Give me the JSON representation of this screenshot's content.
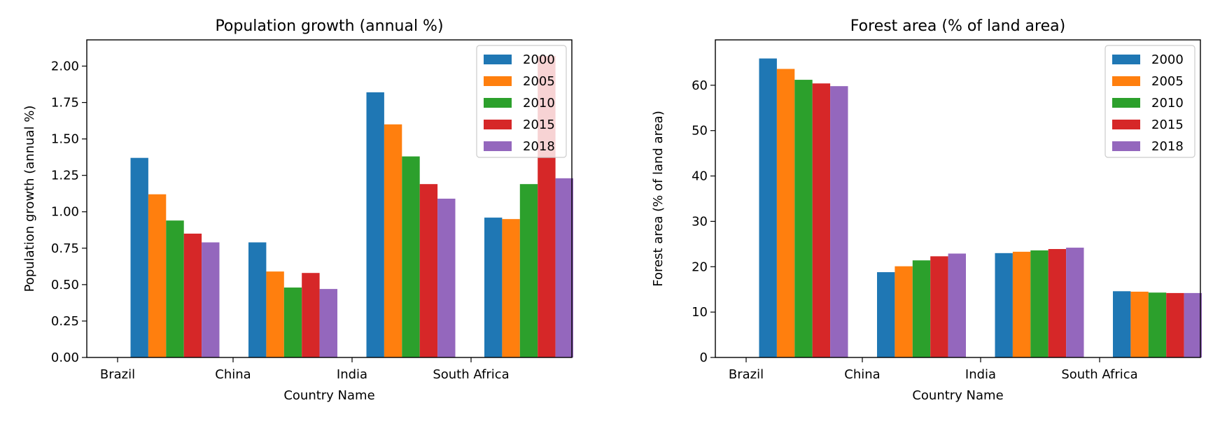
{
  "chart_data": [
    {
      "type": "bar",
      "title": "Population growth (annual %)",
      "xlabel": "Country Name",
      "ylabel": "Population growth (annual %)",
      "categories": [
        "Brazil",
        "China",
        "India",
        "South Africa"
      ],
      "ylim": [
        0,
        2.18
      ],
      "yticks": [
        "0.00",
        "0.25",
        "0.50",
        "0.75",
        "1.00",
        "1.25",
        "1.50",
        "1.75",
        "2.00"
      ],
      "grid": false,
      "legend_position": "top-right",
      "series": [
        {
          "name": "2000",
          "color": "#1f77b4",
          "values": [
            1.37,
            0.79,
            1.82,
            0.96
          ]
        },
        {
          "name": "2005",
          "color": "#ff7f0e",
          "values": [
            1.12,
            0.59,
            1.6,
            0.95
          ]
        },
        {
          "name": "2010",
          "color": "#2ca02c",
          "values": [
            0.94,
            0.48,
            1.38,
            1.19
          ]
        },
        {
          "name": "2015",
          "color": "#d62728",
          "values": [
            0.85,
            0.58,
            1.19,
            2.07
          ]
        },
        {
          "name": "2018",
          "color": "#9467bd",
          "values": [
            0.79,
            0.47,
            1.09,
            1.23
          ]
        }
      ]
    },
    {
      "type": "bar",
      "title": "Forest area (% of land area)",
      "xlabel": "Country Name",
      "ylabel": "Forest area (% of land area)",
      "categories": [
        "Brazil",
        "China",
        "India",
        "South Africa"
      ],
      "ylim": [
        0,
        70
      ],
      "yticks": [
        "0",
        "10",
        "20",
        "30",
        "40",
        "50",
        "60"
      ],
      "grid": false,
      "legend_position": "top-right",
      "series": [
        {
          "name": "2000",
          "color": "#1f77b4",
          "values": [
            65.9,
            18.8,
            23.0,
            14.6
          ]
        },
        {
          "name": "2005",
          "color": "#ff7f0e",
          "values": [
            63.6,
            20.1,
            23.3,
            14.5
          ]
        },
        {
          "name": "2010",
          "color": "#2ca02c",
          "values": [
            61.2,
            21.4,
            23.6,
            14.3
          ]
        },
        {
          "name": "2015",
          "color": "#d62728",
          "values": [
            60.4,
            22.3,
            23.9,
            14.2
          ]
        },
        {
          "name": "2018",
          "color": "#9467bd",
          "values": [
            59.8,
            22.9,
            24.2,
            14.2
          ]
        }
      ]
    }
  ]
}
